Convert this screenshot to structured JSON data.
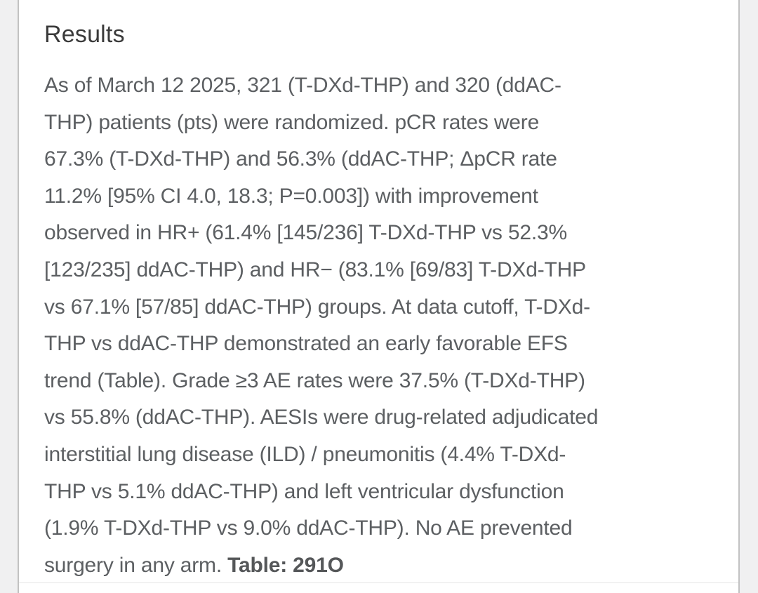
{
  "section": {
    "heading": "Results",
    "lines": [
      {
        "regular": "As of March 12 2025, 321 (T-DXd-THP) and 320 (ddAC-",
        "bold": ""
      },
      {
        "regular": "THP) patients (pts) were randomized. pCR rates were",
        "bold": ""
      },
      {
        "regular": "67.3% (T-DXd-THP) and 56.3% (ddAC-THP; ΔpCR rate",
        "bold": ""
      },
      {
        "regular": "11.2% [95% CI 4.0, 18.3; P=0.003]) with improvement",
        "bold": ""
      },
      {
        "regular": "observed in HR+ (61.4% [145/236] T-DXd-THP vs 52.3%",
        "bold": ""
      },
      {
        "regular": "[123/235] ddAC-THP) and HR− (83.1% [69/83] T-DXd-THP",
        "bold": ""
      },
      {
        "regular": "vs 67.1% [57/85] ddAC-THP) groups. At data cutoff, T-DXd-",
        "bold": ""
      },
      {
        "regular": "THP vs ddAC-THP demonstrated an early favorable EFS",
        "bold": ""
      },
      {
        "regular": "trend (Table). Grade ≥3 AE rates were 37.5% (T-DXd-THP)",
        "bold": ""
      },
      {
        "regular": "vs 55.8% (ddAC-THP). AESIs were drug-related adjudicated",
        "bold": ""
      },
      {
        "regular": "interstitial lung disease (ILD) / pneumonitis (4.4% T-DXd-",
        "bold": ""
      },
      {
        "regular": "THP vs 5.1% ddAC-THP) and left ventricular dysfunction",
        "bold": ""
      },
      {
        "regular": "(1.9% T-DXd-THP vs 9.0% ddAC-THP). No AE prevented",
        "bold": ""
      },
      {
        "regular": "surgery in any arm. ",
        "bold": "Table: 291O"
      }
    ]
  },
  "colors": {
    "page_background": "#f0f0f1",
    "card_background": "#ffffff",
    "card_border": "#c2c2c2",
    "heading_text": "#3a3a3a",
    "body_text": "#5c5f62"
  }
}
